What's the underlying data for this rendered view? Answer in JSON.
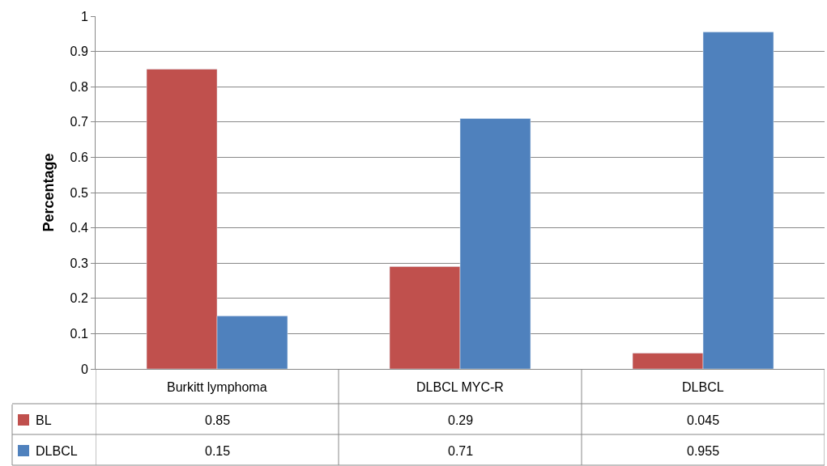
{
  "chart_data": {
    "type": "bar",
    "ylabel": "Percentage",
    "categories": [
      "Burkitt lymphoma",
      "DLBCL MYC-R",
      "DLBCL"
    ],
    "series": [
      {
        "name": "BL",
        "color": "#c0504d",
        "values": [
          0.85,
          0.29,
          0.045
        ]
      },
      {
        "name": "DLBCL",
        "color": "#4f81bd",
        "values": [
          0.15,
          0.71,
          0.955
        ]
      }
    ],
    "ylim": [
      0,
      1
    ],
    "yticks": [
      0,
      0.1,
      0.2,
      0.3,
      0.4,
      0.5,
      0.6,
      0.7,
      0.8,
      0.9,
      1
    ],
    "grid": "y",
    "data_labels": true,
    "legend": "bottom left"
  }
}
